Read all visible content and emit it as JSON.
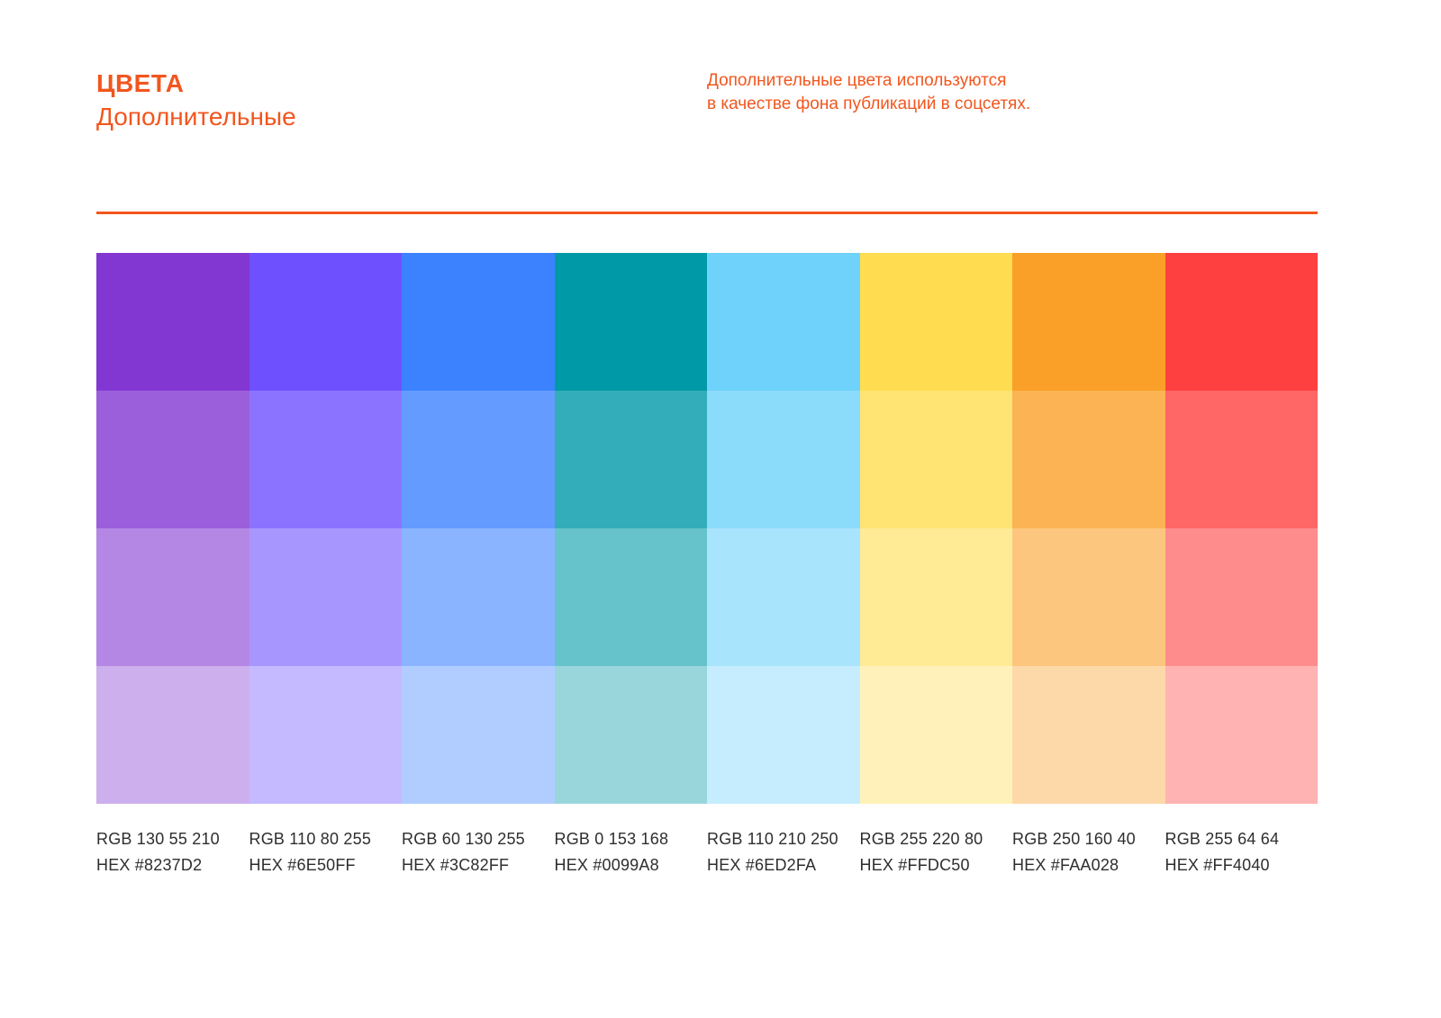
{
  "page": {
    "background_color": "#FFFFFF",
    "accent_color": "#F2561E",
    "label_text_color": "#2E2E2E"
  },
  "header": {
    "title_line1": "ЦВЕТА",
    "title_line2": "Дополнительные",
    "note_line1": "Дополнительные цвета используются",
    "note_line2": "в качестве фона публикаций в соцсетях."
  },
  "palette": {
    "tint_levels": [
      1,
      0.8,
      0.6,
      0.4
    ],
    "columns": [
      {
        "color": "#8237D2",
        "rgb_label": "RGB 130 55 210",
        "hex_label": "HEX #8237D2"
      },
      {
        "color": "#6E50FF",
        "rgb_label": "RGB 110 80 255",
        "hex_label": "HEX #6E50FF"
      },
      {
        "color": "#3C82FF",
        "rgb_label": "RGB 60 130 255",
        "hex_label": "HEX #3C82FF"
      },
      {
        "color": "#0099A8",
        "rgb_label": "RGB 0 153 168",
        "hex_label": "HEX #0099A8"
      },
      {
        "color": "#6ED2FA",
        "rgb_label": "RGB 110 210 250",
        "hex_label": "HEX #6ED2FA"
      },
      {
        "color": "#FFDC50",
        "rgb_label": "RGB 255 220 80",
        "hex_label": "HEX #FFDC50"
      },
      {
        "color": "#FAA028",
        "rgb_label": "RGB 250 160 40",
        "hex_label": "HEX #FAA028"
      },
      {
        "color": "#FF4040",
        "rgb_label": "RGB 255 64 64",
        "hex_label": "HEX #FF4040"
      }
    ]
  }
}
